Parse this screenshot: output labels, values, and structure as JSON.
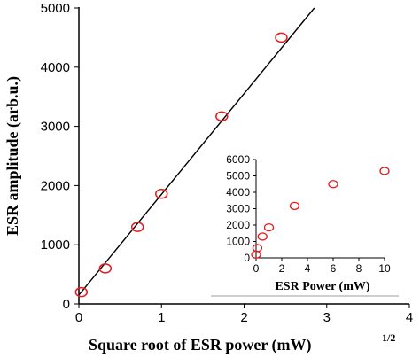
{
  "chart_data": [
    {
      "type": "scatter",
      "role": "main",
      "xlabel": "Square root of ESR power (mW)",
      "xlabel_sup": "1/2",
      "ylabel": "ESR amplitude (arb.u.)",
      "xlim": [
        0,
        4
      ],
      "ylim": [
        0,
        5000
      ],
      "xticks": [
        "0",
        "1",
        "2",
        "3",
        "4"
      ],
      "yticks": [
        "0",
        "1000",
        "2000",
        "3000",
        "4000",
        "5000"
      ],
      "series": [
        {
          "marker": "open-circle",
          "color": "#e8191c",
          "x": [
            0.03,
            0.32,
            0.71,
            1.0,
            1.73,
            2.45
          ],
          "y": [
            200,
            600,
            1300,
            1860,
            3170,
            4500
          ]
        }
      ],
      "fit_line": {
        "color": "#000000",
        "x": [
          0,
          2.85
        ],
        "y": [
          150,
          5000
        ]
      },
      "grid": false
    },
    {
      "type": "scatter",
      "role": "inset",
      "xlabel": "ESR Power (mW)",
      "ylabel": "",
      "xlim": [
        0,
        10
      ],
      "ylim": [
        0,
        6000
      ],
      "xticks": [
        "0",
        "2",
        "4",
        "6",
        "8",
        "10"
      ],
      "yticks": [
        "0",
        "1000",
        "2000",
        "3000",
        "4000",
        "5000",
        "6000"
      ],
      "series": [
        {
          "marker": "open-circle",
          "color": "#e8191c",
          "x": [
            0.0,
            0.1,
            0.5,
            1.0,
            3.0,
            6.0,
            10.0
          ],
          "y": [
            200,
            600,
            1300,
            1860,
            3170,
            4500,
            5300
          ]
        }
      ],
      "grid": false
    }
  ]
}
